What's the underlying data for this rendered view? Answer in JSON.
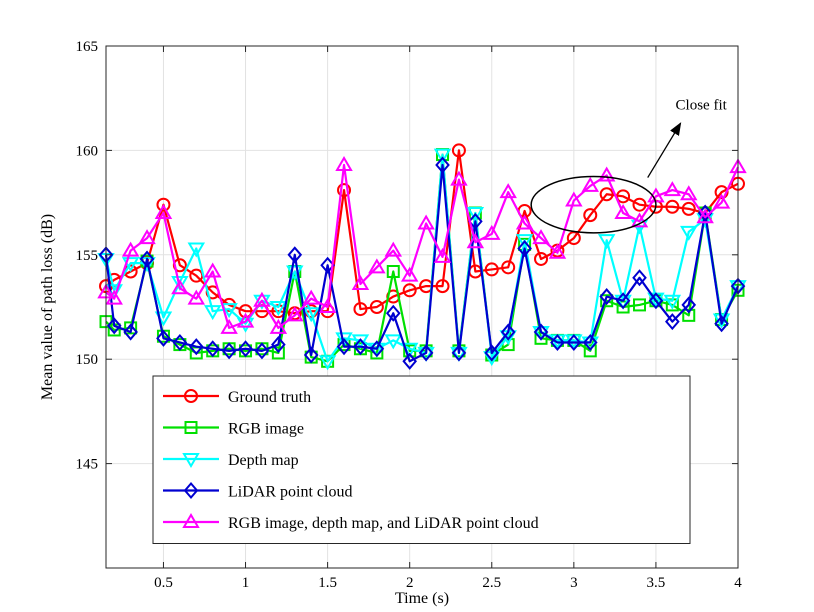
{
  "chart_data": {
    "type": "line",
    "title": "",
    "xlabel": "Time (s)",
    "ylabel": "Mean value of path loss (dB)",
    "xlim": [
      0.15,
      4
    ],
    "ylim": [
      140,
      165
    ],
    "xticks": [
      0.5,
      1,
      1.5,
      2,
      2.5,
      3,
      3.5,
      4
    ],
    "xtick_labels": [
      "0.5",
      "1",
      "1.5",
      "2",
      "2.5",
      "3",
      "3.5",
      "4"
    ],
    "yticks": [
      145,
      150,
      155,
      160,
      165
    ],
    "ytick_labels": [
      "145",
      "150",
      "155",
      "160",
      "165"
    ],
    "grid": true,
    "legend_position": "bottom-left",
    "annotation": {
      "text": "Close fit",
      "ellipse_center": [
        3.12,
        157.4
      ],
      "ellipse_radii": [
        0.38,
        1.35
      ],
      "arrow_from": [
        3.45,
        158.7
      ],
      "arrow_to": [
        3.65,
        161.3
      ]
    },
    "x": [
      0.15,
      0.2,
      0.3,
      0.4,
      0.5,
      0.6,
      0.7,
      0.8,
      0.9,
      1.0,
      1.1,
      1.2,
      1.3,
      1.4,
      1.5,
      1.6,
      1.7,
      1.8,
      1.9,
      2.0,
      2.1,
      2.2,
      2.3,
      2.4,
      2.5,
      2.6,
      2.7,
      2.8,
      2.9,
      3.0,
      3.1,
      3.2,
      3.3,
      3.4,
      3.5,
      3.6,
      3.7,
      3.8,
      3.9,
      4.0
    ],
    "series": [
      {
        "name": "Ground truth",
        "color": "#ff0000",
        "marker": "circle",
        "values": [
          153.5,
          153.8,
          154.2,
          154.6,
          157.4,
          154.5,
          154.0,
          153.2,
          152.6,
          152.3,
          152.3,
          152.3,
          152.2,
          152.3,
          152.3,
          158.1,
          152.4,
          152.5,
          153.0,
          153.3,
          153.5,
          153.5,
          160.0,
          154.2,
          154.3,
          154.4,
          157.1,
          154.8,
          155.2,
          155.8,
          156.9,
          157.9,
          157.8,
          157.4,
          157.3,
          157.3,
          157.2,
          157.0,
          158.0,
          158.4
        ]
      },
      {
        "name": "RGB image",
        "color": "#00e000",
        "marker": "square",
        "values": [
          151.8,
          151.4,
          151.5,
          154.7,
          151.1,
          150.7,
          150.3,
          150.4,
          150.5,
          150.4,
          150.5,
          150.3,
          154.2,
          150.1,
          149.9,
          150.7,
          150.5,
          150.3,
          154.2,
          150.4,
          150.4,
          159.8,
          150.4,
          157.0,
          150.2,
          150.7,
          155.5,
          151.0,
          150.9,
          150.9,
          150.4,
          152.8,
          152.5,
          152.6,
          152.8,
          152.6,
          152.1,
          157.0,
          151.9,
          153.3
        ]
      },
      {
        "name": "Depth map",
        "color": "#00ffff",
        "marker": "triangle-down",
        "values": [
          154.8,
          153.3,
          154.6,
          154.6,
          152.0,
          153.7,
          155.3,
          152.3,
          152.4,
          151.7,
          152.8,
          152.5,
          154.2,
          152.2,
          149.9,
          151.0,
          150.9,
          150.5,
          150.9,
          150.5,
          150.3,
          159.8,
          150.3,
          157.0,
          150.1,
          151.1,
          155.7,
          151.3,
          150.9,
          150.9,
          150.8,
          155.7,
          152.8,
          156.4,
          152.9,
          152.8,
          156.1,
          156.7,
          151.9,
          153.5
        ]
      },
      {
        "name": "LiDAR point cloud",
        "color": "#0000d0",
        "marker": "diamond",
        "values": [
          155.0,
          151.6,
          151.3,
          154.8,
          151.0,
          150.8,
          150.6,
          150.5,
          150.4,
          150.5,
          150.4,
          150.7,
          155.0,
          150.2,
          154.5,
          150.6,
          150.6,
          150.5,
          152.2,
          149.9,
          150.3,
          159.3,
          150.3,
          156.6,
          150.3,
          151.3,
          155.3,
          151.3,
          150.8,
          150.8,
          150.8,
          153.0,
          152.8,
          153.9,
          152.8,
          151.8,
          152.6,
          157.0,
          151.7,
          153.5
        ]
      },
      {
        "name": "RGB image, depth map, and LiDAR point cloud",
        "color": "#ff00ff",
        "marker": "triangle-up",
        "values": [
          153.2,
          152.9,
          155.2,
          155.8,
          157.0,
          153.4,
          152.9,
          154.2,
          151.5,
          151.8,
          152.8,
          151.5,
          152.1,
          152.9,
          152.5,
          159.3,
          153.6,
          154.4,
          155.2,
          154.0,
          156.5,
          154.9,
          158.6,
          155.6,
          156.0,
          158.0,
          156.5,
          155.8,
          155.1,
          157.6,
          158.3,
          158.8,
          157.0,
          156.6,
          157.8,
          158.1,
          157.9,
          156.8,
          157.5,
          159.2
        ]
      }
    ]
  }
}
